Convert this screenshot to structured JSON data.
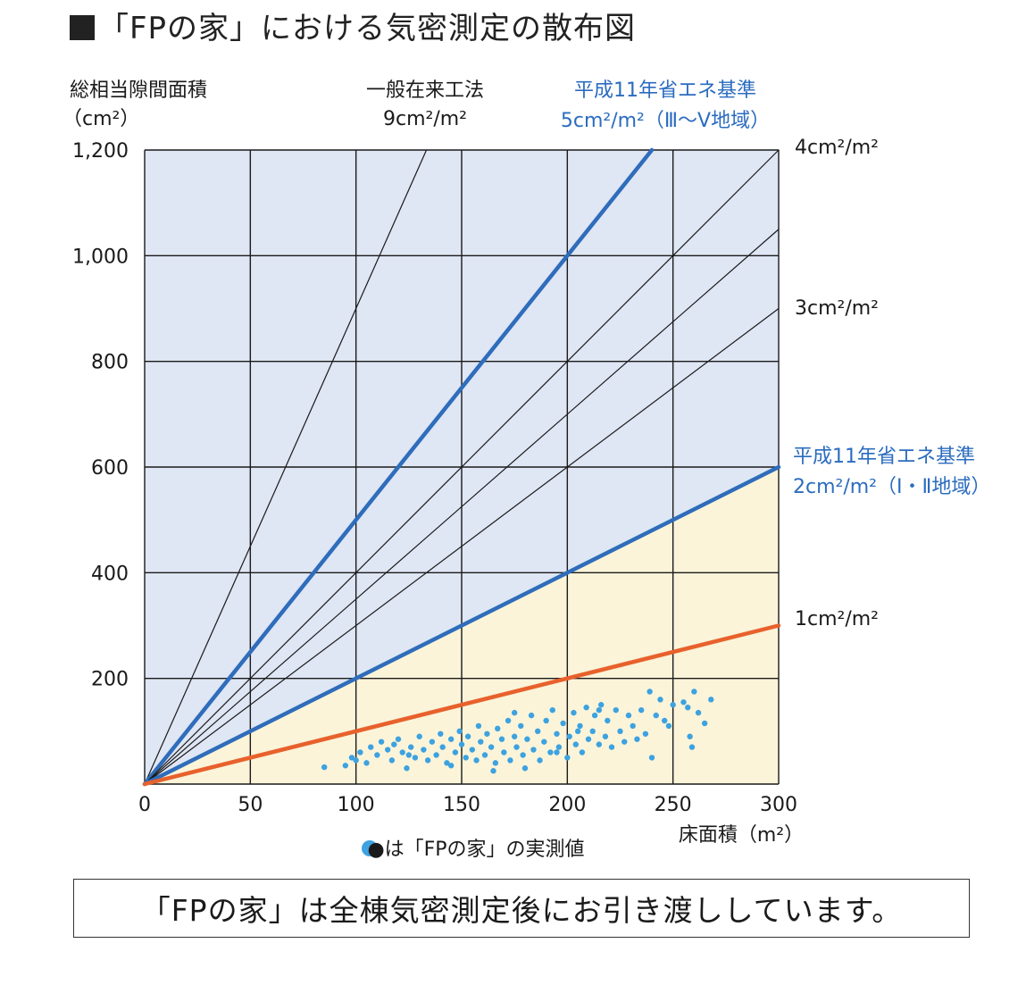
{
  "title": "「FPの家」における気密測定の散布図",
  "footer_note": "「FPの家」は全棟気密測定後にお引き渡ししています。",
  "colors": {
    "plot_bg_upper": "#dfe6f4",
    "plot_bg_lower": "#fbf4d9",
    "grid": "#1a1a1a",
    "blue_line": "#2f6dbb",
    "orange_line": "#e8612c",
    "dot": "#3da2e0",
    "blue_text": "#2b6cbf"
  },
  "chart_data": {
    "type": "scatter",
    "title": "「FPの家」における気密測定の散布図",
    "xlabel": "床面積（m²）",
    "ylabel_line1": "総相当隙間面積",
    "ylabel_line2": "（cm²）",
    "xlim": [
      0,
      300
    ],
    "ylim": [
      0,
      1200
    ],
    "x_ticks": [
      "0",
      "50",
      "100",
      "150",
      "200",
      "250",
      "300"
    ],
    "y_ticks": [
      "1,200",
      "1,000",
      "800",
      "600",
      "400",
      "200"
    ],
    "grid": true,
    "reference_lines": [
      {
        "slope": 9,
        "style": "thin-black",
        "label_line1": "一般在来工法",
        "label_line2": "9cm²/m²"
      },
      {
        "slope": 5,
        "style": "thick-blue",
        "label_line1": "平成11年省エネ基準",
        "label_line2": "5cm²/m²（Ⅲ〜Ⅴ地域）"
      },
      {
        "slope": 4,
        "style": "thin-black",
        "label_line1": "4cm²/m²"
      },
      {
        "slope": 3.5,
        "style": "thin-black"
      },
      {
        "slope": 3,
        "style": "thin-black",
        "label_line1": "3cm²/m²"
      },
      {
        "slope": 2,
        "style": "thick-blue",
        "label_line1": "平成11年省エネ基準",
        "label_line2": "2cm²/m²（Ⅰ・Ⅱ地域）"
      },
      {
        "slope": 1,
        "style": "thick-orange",
        "label_line1": "1cm²/m²"
      }
    ],
    "legend": "●は「FPの家」の実測値",
    "points": [
      [
        85,
        32
      ],
      [
        95,
        35
      ],
      [
        98,
        50
      ],
      [
        100,
        45
      ],
      [
        102,
        60
      ],
      [
        105,
        40
      ],
      [
        107,
        70
      ],
      [
        110,
        55
      ],
      [
        112,
        80
      ],
      [
        115,
        65
      ],
      [
        117,
        45
      ],
      [
        118,
        75
      ],
      [
        120,
        85
      ],
      [
        122,
        60
      ],
      [
        124,
        30
      ],
      [
        126,
        70
      ],
      [
        128,
        50
      ],
      [
        130,
        90
      ],
      [
        132,
        65
      ],
      [
        134,
        45
      ],
      [
        136,
        80
      ],
      [
        138,
        55
      ],
      [
        140,
        95
      ],
      [
        141,
        70
      ],
      [
        143,
        40
      ],
      [
        145,
        85
      ],
      [
        147,
        60
      ],
      [
        149,
        100
      ],
      [
        150,
        75
      ],
      [
        152,
        50
      ],
      [
        153,
        90
      ],
      [
        155,
        65
      ],
      [
        157,
        45
      ],
      [
        158,
        110
      ],
      [
        159,
        80
      ],
      [
        161,
        55
      ],
      [
        162,
        95
      ],
      [
        164,
        70
      ],
      [
        166,
        40
      ],
      [
        167,
        105
      ],
      [
        169,
        85
      ],
      [
        170,
        60
      ],
      [
        172,
        120
      ],
      [
        173,
        45
      ],
      [
        175,
        90
      ],
      [
        176,
        70
      ],
      [
        178,
        110
      ],
      [
        179,
        55
      ],
      [
        181,
        85
      ],
      [
        183,
        130
      ],
      [
        184,
        65
      ],
      [
        186,
        100
      ],
      [
        187,
        45
      ],
      [
        189,
        80
      ],
      [
        190,
        120
      ],
      [
        192,
        60
      ],
      [
        193,
        140
      ],
      [
        195,
        95
      ],
      [
        196,
        70
      ],
      [
        198,
        115
      ],
      [
        200,
        50
      ],
      [
        201,
        90
      ],
      [
        203,
        135
      ],
      [
        204,
        75
      ],
      [
        206,
        110
      ],
      [
        207,
        60
      ],
      [
        209,
        145
      ],
      [
        210,
        85
      ],
      [
        212,
        100
      ],
      [
        213,
        130
      ],
      [
        215,
        75
      ],
      [
        216,
        150
      ],
      [
        218,
        90
      ],
      [
        219,
        120
      ],
      [
        221,
        70
      ],
      [
        223,
        140
      ],
      [
        225,
        100
      ],
      [
        227,
        80
      ],
      [
        229,
        130
      ],
      [
        231,
        110
      ],
      [
        233,
        85
      ],
      [
        235,
        140
      ],
      [
        237,
        95
      ],
      [
        239,
        175
      ],
      [
        240,
        50
      ],
      [
        242,
        130
      ],
      [
        244,
        160
      ],
      [
        246,
        120
      ],
      [
        248,
        110
      ],
      [
        250,
        150
      ],
      [
        255,
        155
      ],
      [
        257,
        145
      ],
      [
        258,
        90
      ],
      [
        259,
        70
      ],
      [
        260,
        175
      ],
      [
        262,
        135
      ],
      [
        265,
        115
      ],
      [
        268,
        160
      ],
      [
        180,
        30
      ],
      [
        165,
        25
      ],
      [
        145,
        35
      ],
      [
        125,
        55
      ],
      [
        215,
        140
      ],
      [
        205,
        100
      ],
      [
        195,
        60
      ],
      [
        175,
        135
      ]
    ]
  }
}
